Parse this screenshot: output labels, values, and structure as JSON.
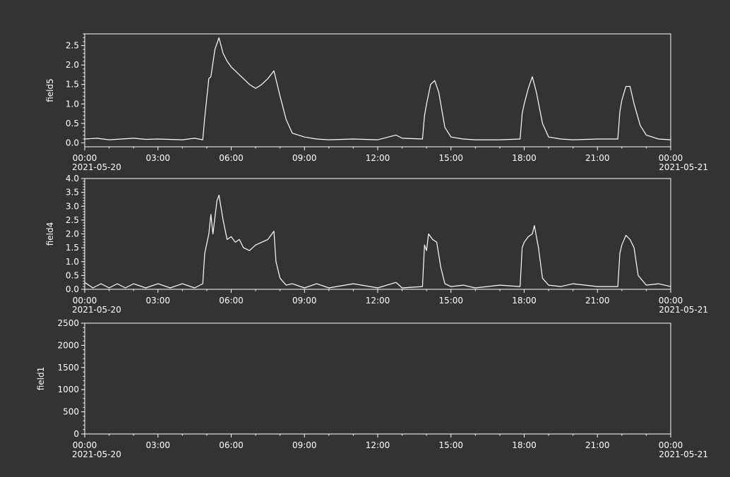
{
  "colors": {
    "background": "#333333",
    "foreground": "#ffffff",
    "line": "#ffffff"
  },
  "chart_data": [
    {
      "type": "line",
      "ylabel": "field5",
      "xlabel": "",
      "x_range": [
        "2021-05-20 00:00",
        "2021-05-21 00:00"
      ],
      "x_ticks": [
        "00:00",
        "03:00",
        "06:00",
        "09:00",
        "12:00",
        "15:00",
        "18:00",
        "21:00",
        "00:00"
      ],
      "x_date_labels": {
        "start": "2021-05-20",
        "end": "2021-05-21"
      },
      "ylim": [
        -0.1,
        2.8
      ],
      "y_ticks": [
        0.0,
        0.5,
        1.0,
        1.5,
        2.0,
        2.5
      ],
      "y_tick_labels": [
        "0.0",
        "0.5",
        "1.0",
        "1.5",
        "2.0",
        "2.5"
      ],
      "grid": false,
      "series": [
        {
          "x": [
            "2021-05-20 00:00",
            "2021-05-20 00:30",
            "2021-05-20 01:00",
            "2021-05-20 02:00",
            "2021-05-20 02:30",
            "2021-05-20 03:00",
            "2021-05-20 04:00",
            "2021-05-20 04:30",
            "2021-05-20 04:50",
            "2021-05-20 04:55",
            "2021-05-20 05:05",
            "2021-05-20 05:10",
            "2021-05-20 05:20",
            "2021-05-20 05:30",
            "2021-05-20 05:40",
            "2021-05-20 05:50",
            "2021-05-20 06:00",
            "2021-05-20 06:10",
            "2021-05-20 06:20",
            "2021-05-20 06:30",
            "2021-05-20 06:45",
            "2021-05-20 07:00",
            "2021-05-20 07:15",
            "2021-05-20 07:30",
            "2021-05-20 07:45",
            "2021-05-20 08:00",
            "2021-05-20 08:15",
            "2021-05-20 08:30",
            "2021-05-20 09:00",
            "2021-05-20 09:30",
            "2021-05-20 10:00",
            "2021-05-20 11:00",
            "2021-05-20 12:00",
            "2021-05-20 12:45",
            "2021-05-20 13:00",
            "2021-05-20 13:50",
            "2021-05-20 13:55",
            "2021-05-20 14:00",
            "2021-05-20 14:10",
            "2021-05-20 14:20",
            "2021-05-20 14:30",
            "2021-05-20 14:45",
            "2021-05-20 15:00",
            "2021-05-20 15:30",
            "2021-05-20 16:00",
            "2021-05-20 17:00",
            "2021-05-20 17:50",
            "2021-05-20 17:55",
            "2021-05-20 18:00",
            "2021-05-20 18:10",
            "2021-05-20 18:20",
            "2021-05-20 18:30",
            "2021-05-20 18:45",
            "2021-05-20 19:00",
            "2021-05-20 19:30",
            "2021-05-20 20:00",
            "2021-05-20 21:00",
            "2021-05-20 21:50",
            "2021-05-20 21:55",
            "2021-05-20 22:00",
            "2021-05-20 22:10",
            "2021-05-20 22:20",
            "2021-05-20 22:30",
            "2021-05-20 22:45",
            "2021-05-20 23:00",
            "2021-05-20 23:30",
            "2021-05-21 00:00"
          ],
          "values": [
            0.1,
            0.12,
            0.08,
            0.12,
            0.09,
            0.1,
            0.08,
            0.12,
            0.08,
            0.65,
            1.65,
            1.7,
            2.4,
            2.7,
            2.3,
            2.1,
            1.95,
            1.85,
            1.75,
            1.65,
            1.5,
            1.4,
            1.5,
            1.65,
            1.85,
            1.2,
            0.6,
            0.25,
            0.15,
            0.1,
            0.08,
            0.1,
            0.08,
            0.2,
            0.12,
            0.1,
            0.7,
            1.0,
            1.5,
            1.6,
            1.3,
            0.4,
            0.15,
            0.1,
            0.08,
            0.08,
            0.1,
            0.75,
            1.0,
            1.4,
            1.7,
            1.3,
            0.5,
            0.15,
            0.1,
            0.08,
            0.1,
            0.1,
            0.8,
            1.1,
            1.45,
            1.45,
            1.0,
            0.45,
            0.2,
            0.1,
            0.08
          ]
        }
      ]
    },
    {
      "type": "line",
      "ylabel": "field4",
      "xlabel": "",
      "x_range": [
        "2021-05-20 00:00",
        "2021-05-21 00:00"
      ],
      "x_ticks": [
        "00:00",
        "03:00",
        "06:00",
        "09:00",
        "12:00",
        "15:00",
        "18:00",
        "21:00",
        "00:00"
      ],
      "x_date_labels": {
        "start": "2021-05-20",
        "end": "2021-05-21"
      },
      "ylim": [
        0,
        4.0
      ],
      "y_ticks": [
        0.0,
        0.5,
        1.0,
        1.5,
        2.0,
        2.5,
        3.0,
        3.5,
        4.0
      ],
      "y_tick_labels": [
        "0.0",
        "0.5",
        "1.0",
        "1.5",
        "2.0",
        "2.5",
        "3.0",
        "3.5",
        "4.0"
      ],
      "grid": false,
      "series": [
        {
          "x": [
            "2021-05-20 00:00",
            "2021-05-20 00:20",
            "2021-05-20 00:40",
            "2021-05-20 01:00",
            "2021-05-20 01:20",
            "2021-05-20 01:40",
            "2021-05-20 02:00",
            "2021-05-20 02:30",
            "2021-05-20 03:00",
            "2021-05-20 03:30",
            "2021-05-20 04:00",
            "2021-05-20 04:30",
            "2021-05-20 04:50",
            "2021-05-20 04:55",
            "2021-05-20 05:05",
            "2021-05-20 05:10",
            "2021-05-20 05:15",
            "2021-05-20 05:25",
            "2021-05-20 05:30",
            "2021-05-20 05:40",
            "2021-05-20 05:50",
            "2021-05-20 06:00",
            "2021-05-20 06:10",
            "2021-05-20 06:20",
            "2021-05-20 06:30",
            "2021-05-20 06:45",
            "2021-05-20 07:00",
            "2021-05-20 07:15",
            "2021-05-20 07:30",
            "2021-05-20 07:45",
            "2021-05-20 07:50",
            "2021-05-20 08:00",
            "2021-05-20 08:15",
            "2021-05-20 08:30",
            "2021-05-20 09:00",
            "2021-05-20 09:30",
            "2021-05-20 10:00",
            "2021-05-20 11:00",
            "2021-05-20 12:00",
            "2021-05-20 12:45",
            "2021-05-20 13:00",
            "2021-05-20 13:50",
            "2021-05-20 13:55",
            "2021-05-20 14:00",
            "2021-05-20 14:05",
            "2021-05-20 14:15",
            "2021-05-20 14:25",
            "2021-05-20 14:35",
            "2021-05-20 14:45",
            "2021-05-20 15:00",
            "2021-05-20 15:30",
            "2021-05-20 16:00",
            "2021-05-20 17:00",
            "2021-05-20 17:50",
            "2021-05-20 17:55",
            "2021-05-20 18:00",
            "2021-05-20 18:10",
            "2021-05-20 18:20",
            "2021-05-20 18:25",
            "2021-05-20 18:35",
            "2021-05-20 18:45",
            "2021-05-20 19:00",
            "2021-05-20 19:30",
            "2021-05-20 20:00",
            "2021-05-20 21:00",
            "2021-05-20 21:50",
            "2021-05-20 21:55",
            "2021-05-20 22:00",
            "2021-05-20 22:10",
            "2021-05-20 22:20",
            "2021-05-20 22:30",
            "2021-05-20 22:40",
            "2021-05-20 23:00",
            "2021-05-20 23:30",
            "2021-05-21 00:00"
          ],
          "values": [
            0.25,
            0.05,
            0.2,
            0.05,
            0.2,
            0.05,
            0.2,
            0.05,
            0.2,
            0.05,
            0.2,
            0.05,
            0.2,
            1.3,
            2.0,
            2.7,
            2.0,
            3.2,
            3.4,
            2.5,
            1.8,
            1.9,
            1.7,
            1.8,
            1.5,
            1.4,
            1.6,
            1.7,
            1.8,
            2.1,
            1.0,
            0.4,
            0.15,
            0.2,
            0.05,
            0.2,
            0.05,
            0.2,
            0.05,
            0.25,
            0.05,
            0.1,
            1.6,
            1.4,
            2.0,
            1.8,
            1.7,
            0.8,
            0.2,
            0.1,
            0.15,
            0.05,
            0.15,
            0.1,
            1.5,
            1.7,
            1.9,
            2.0,
            2.3,
            1.5,
            0.4,
            0.15,
            0.1,
            0.2,
            0.1,
            0.1,
            1.3,
            1.6,
            1.95,
            1.8,
            1.5,
            0.5,
            0.15,
            0.2,
            0.1
          ]
        }
      ]
    },
    {
      "type": "line",
      "ylabel": "field1",
      "xlabel": "",
      "x_range": [
        "2021-05-20 00:00",
        "2021-05-21 00:00"
      ],
      "x_ticks": [
        "00:00",
        "03:00",
        "06:00",
        "09:00",
        "12:00",
        "15:00",
        "18:00",
        "21:00",
        "00:00"
      ],
      "x_date_labels": {
        "start": "2021-05-20",
        "end": "2021-05-21"
      },
      "ylim": [
        0,
        2500
      ],
      "y_ticks": [
        0,
        500,
        1000,
        1500,
        2000,
        2500
      ],
      "y_tick_labels": [
        "0",
        "500",
        "1000",
        "1500",
        "2000",
        "2500"
      ],
      "grid": false,
      "series": []
    }
  ]
}
